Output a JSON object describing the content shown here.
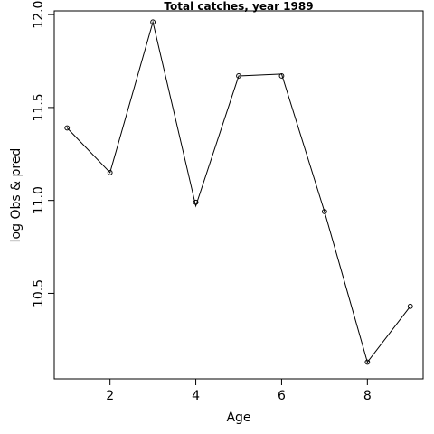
{
  "chart_data": {
    "type": "line",
    "title": "Total catches, year 1989",
    "xlabel": "Age",
    "ylabel": "log Obs & pred",
    "xlim": [
      0.7,
      9.3
    ],
    "ylim": [
      10.04,
      12.02
    ],
    "xticks": [
      2,
      4,
      6,
      8
    ],
    "yticks": [
      10.5,
      11.0,
      11.5,
      12.0
    ],
    "ytick_labels": [
      "10.5",
      "11.0",
      "11.5",
      "12.0"
    ],
    "grid": false,
    "series": [
      {
        "role": "predicted",
        "style": "line",
        "x": [
          1,
          2,
          3,
          4,
          5,
          6,
          7,
          8,
          9
        ],
        "values": [
          11.39,
          11.15,
          11.96,
          10.97,
          11.67,
          11.68,
          10.94,
          10.13,
          10.43
        ]
      },
      {
        "role": "observed",
        "style": "points",
        "x": [
          1,
          2,
          3,
          4,
          5,
          6,
          7,
          8,
          9
        ],
        "values": [
          11.39,
          11.15,
          11.96,
          10.99,
          11.67,
          11.67,
          10.94,
          10.13,
          10.43
        ]
      }
    ]
  }
}
